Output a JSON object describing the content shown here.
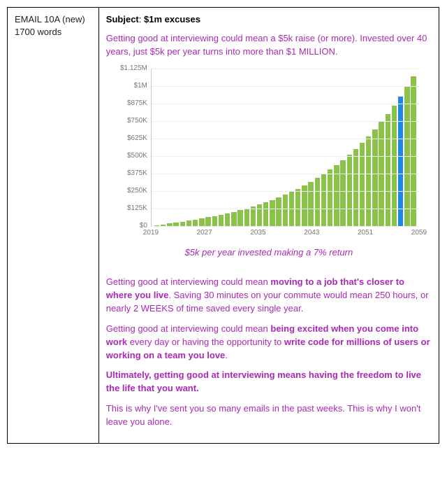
{
  "left": {
    "title": "EMAIL 10A (new)",
    "wordcount": "1700 words"
  },
  "subject": {
    "label": "Subject",
    "value": "$1m excuses"
  },
  "paragraphs": {
    "intro": "Getting good at interviewing could mean a $5k raise (or more). Invested over 40 years, just $5k per year turns into more than $1 MILLION.",
    "caption": "$5k per year invested making a 7% return",
    "p2_a": "Getting good at interviewing could mean ",
    "p2_b": "moving to a job that's closer to where you live",
    "p2_c": ". Saving 30 minutes on your commute would mean 250 hours, or nearly 2 WEEKS of time saved every single year.",
    "p3_a": "Getting good at interviewing could mean ",
    "p3_b": "being excited when you come into work",
    "p3_c": " every day or having the opportunity to ",
    "p3_d": "write code for millions of users or working on a team you love",
    "p3_e": ".",
    "p4": "Ultimately, getting good at interviewing means having the freedom to live the life that you want.",
    "p5": "This is why I've sent you so many emails in the past weeks. This is why I won't leave you alone."
  },
  "chart": {
    "type": "bar",
    "title_fontsize": 11,
    "label_fontsize": 10,
    "bar_color": "#8bc34a",
    "highlight_color": "#1e88e5",
    "highlight_index": 38,
    "grid_color": "#eeeeee",
    "axis_color": "#c9c9c9",
    "background_color": "#ffffff",
    "text_color": "#777777",
    "ylim": [
      0,
      1125
    ],
    "ytick_step": 125,
    "y_ticks": [
      {
        "v": 0,
        "label": "$0"
      },
      {
        "v": 125,
        "label": "$125K"
      },
      {
        "v": 250,
        "label": "$250K"
      },
      {
        "v": 375,
        "label": "$375K"
      },
      {
        "v": 500,
        "label": "$500K"
      },
      {
        "v": 625,
        "label": "$625K"
      },
      {
        "v": 750,
        "label": "$750K"
      },
      {
        "v": 875,
        "label": "$875K"
      },
      {
        "v": 1000,
        "label": "$1M"
      },
      {
        "v": 1125,
        "label": "$1.125M"
      }
    ],
    "x_start": 2019,
    "x_end": 2059,
    "x_tick_step": 8,
    "x_ticks": [
      "2019",
      "2027",
      "2035",
      "2043",
      "2051",
      "2059"
    ],
    "bar_width": 0.78,
    "values": [
      5,
      10,
      16,
      22,
      29,
      37,
      44,
      52,
      61,
      70,
      79,
      89,
      100,
      112,
      125,
      138,
      153,
      169,
      185,
      203,
      222,
      243,
      265,
      288,
      314,
      341,
      370,
      401,
      434,
      470,
      508,
      548,
      592,
      638,
      688,
      741,
      798,
      859,
      924,
      994,
      1068
    ]
  },
  "colors": {
    "accent_text": "#aa29b6",
    "black": "#000000"
  }
}
